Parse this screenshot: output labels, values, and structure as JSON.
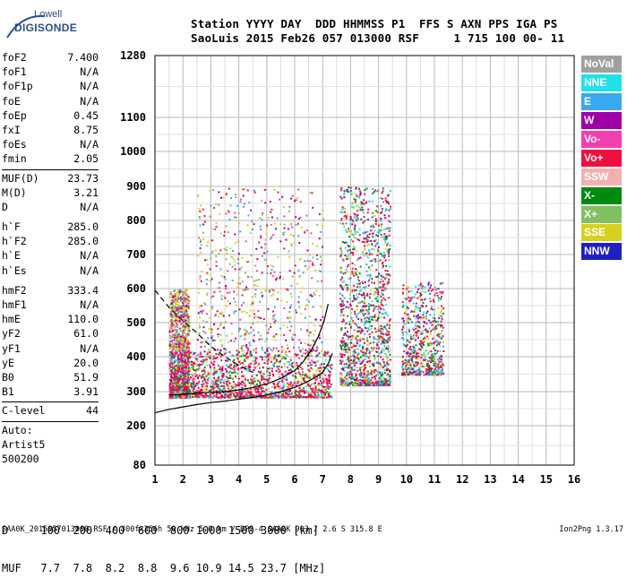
{
  "logo": {
    "line1": "Lowell",
    "line2": "DIGISONDE"
  },
  "header": {
    "line1": "Station YYYY DAY  DDD HHMMSS P1  FFS S AXN PPS IGA PS",
    "line2": "SaoLuis 2015 Feb26 057 013000 RSF     1 715 100 00- 11"
  },
  "params": {
    "group1": [
      {
        "label": "foF2",
        "value": "7.400"
      },
      {
        "label": "foF1",
        "value": "N/A"
      },
      {
        "label": "foF1p",
        "value": "N/A"
      },
      {
        "label": "foE",
        "value": "N/A"
      },
      {
        "label": "foEp",
        "value": "0.45"
      },
      {
        "label": "fxI",
        "value": "8.75"
      },
      {
        "label": "foEs",
        "value": "N/A"
      },
      {
        "label": "fmin",
        "value": "2.05"
      }
    ],
    "group2": [
      {
        "label": "MUF(D)",
        "value": "23.73"
      },
      {
        "label": "M(D)",
        "value": "3.21"
      },
      {
        "label": "D",
        "value": "N/A"
      }
    ],
    "group3": [
      {
        "label": "h`F",
        "value": "285.0"
      },
      {
        "label": "h`F2",
        "value": "285.0"
      },
      {
        "label": "h`E",
        "value": "N/A"
      },
      {
        "label": "h`Es",
        "value": "N/A"
      }
    ],
    "group4": [
      {
        "label": "hmF2",
        "value": "333.4"
      },
      {
        "label": "hmF1",
        "value": "N/A"
      },
      {
        "label": "hmE",
        "value": "110.0"
      },
      {
        "label": "yF2",
        "value": "61.0"
      },
      {
        "label": "yF1",
        "value": "N/A"
      },
      {
        "label": "yE",
        "value": "20.0"
      },
      {
        "label": "B0",
        "value": "51.9"
      },
      {
        "label": "B1",
        "value": "3.91"
      }
    ],
    "group5": [
      {
        "label": "C-level",
        "value": "44"
      }
    ],
    "group6": [
      "Auto:",
      "Artist5",
      "500200"
    ]
  },
  "legend": [
    {
      "name": "NoVal",
      "color": "#a0a0a0"
    },
    {
      "name": "NNE",
      "color": "#22e0e8"
    },
    {
      "name": "E",
      "color": "#3aa8f0"
    },
    {
      "name": "W",
      "color": "#a000a8"
    },
    {
      "name": "Vo-",
      "color": "#f040b0"
    },
    {
      "name": "Vo+",
      "color": "#f01040"
    },
    {
      "name": "SSW",
      "color": "#f4b0b0"
    },
    {
      "name": "X-",
      "color": "#008a10"
    },
    {
      "name": "X+",
      "color": "#80c060"
    },
    {
      "name": "SSE",
      "color": "#d8d020"
    },
    {
      "name": "NNW",
      "color": "#2020c0"
    }
  ],
  "chart_data": {
    "type": "scatter",
    "x_ticks": [
      "1",
      "2",
      "3",
      "4",
      "5",
      "6",
      "7",
      "8",
      "9",
      "10",
      "11",
      "12",
      "13",
      "14",
      "15",
      "16"
    ],
    "xlim": [
      1,
      16
    ],
    "y_ticks": [
      "80",
      "200",
      "300",
      "400",
      "500",
      "600",
      "700",
      "800",
      "900",
      "1000",
      "1100",
      "1280"
    ],
    "y_tick_values": [
      80,
      200,
      300,
      400,
      500,
      600,
      700,
      800,
      900,
      1000,
      1100,
      1280
    ],
    "ylim": [
      80,
      1280
    ],
    "y_scale": "reciprocal-like (ionogram virtual height)",
    "grid": true,
    "trace": {
      "solid_profile": [
        [
          1.0,
          238
        ],
        [
          1.5,
          248
        ],
        [
          2.0,
          255
        ],
        [
          2.5,
          262
        ],
        [
          3.0,
          268
        ],
        [
          3.5,
          272
        ],
        [
          4.0,
          278
        ],
        [
          4.5,
          283
        ],
        [
          5.0,
          290
        ],
        [
          5.5,
          300
        ],
        [
          6.0,
          312
        ],
        [
          6.5,
          330
        ],
        [
          7.0,
          355
        ],
        [
          7.2,
          380
        ],
        [
          7.35,
          410
        ]
      ],
      "solid_virtual": [
        [
          1.5,
          290
        ],
        [
          2.0,
          292
        ],
        [
          2.5,
          295
        ],
        [
          3.0,
          298
        ],
        [
          3.5,
          300
        ],
        [
          4.0,
          305
        ],
        [
          4.5,
          312
        ],
        [
          5.0,
          322
        ],
        [
          5.5,
          338
        ],
        [
          6.0,
          360
        ],
        [
          6.3,
          385
        ],
        [
          6.6,
          420
        ],
        [
          6.85,
          460
        ],
        [
          7.05,
          505
        ],
        [
          7.2,
          555
        ]
      ],
      "dashed": [
        [
          1.0,
          595
        ],
        [
          1.5,
          545
        ],
        [
          2.0,
          505
        ],
        [
          2.5,
          470
        ],
        [
          3.0,
          430
        ],
        [
          3.5,
          400
        ],
        [
          4.0,
          375
        ],
        [
          4.5,
          355
        ]
      ]
    },
    "echo_clusters": [
      {
        "fmin": 1.5,
        "fmax": 2.2,
        "hmin": 285,
        "hmax": 600,
        "density": "high"
      },
      {
        "fmin": 2.0,
        "fmax": 7.3,
        "hmin": 285,
        "hmax": 420,
        "density": "high"
      },
      {
        "fmin": 2.5,
        "fmax": 7.0,
        "hmin": 420,
        "hmax": 900,
        "density": "medium"
      },
      {
        "fmin": 7.6,
        "fmax": 9.4,
        "hmin": 320,
        "hmax": 900,
        "density": "high"
      },
      {
        "fmin": 9.8,
        "fmax": 11.3,
        "hmin": 350,
        "hmax": 620,
        "density": "medium"
      }
    ]
  },
  "dtable": {
    "line1": "D     100  200  400  600  800 1000 1500 3000 [km]",
    "line2": "MUF   7.7  7.8  8.2  8.8  9.6 10.9 14.5 23.7 [MHz]"
  },
  "footer": {
    "left": "SAA0K_2015057013000.RSF / 300fx256h 50 kHz 5.0 km / DPS-4 SAA0K 903 / 2.6 S 315.8 E",
    "right": "Ion2Png 1.3.17"
  }
}
